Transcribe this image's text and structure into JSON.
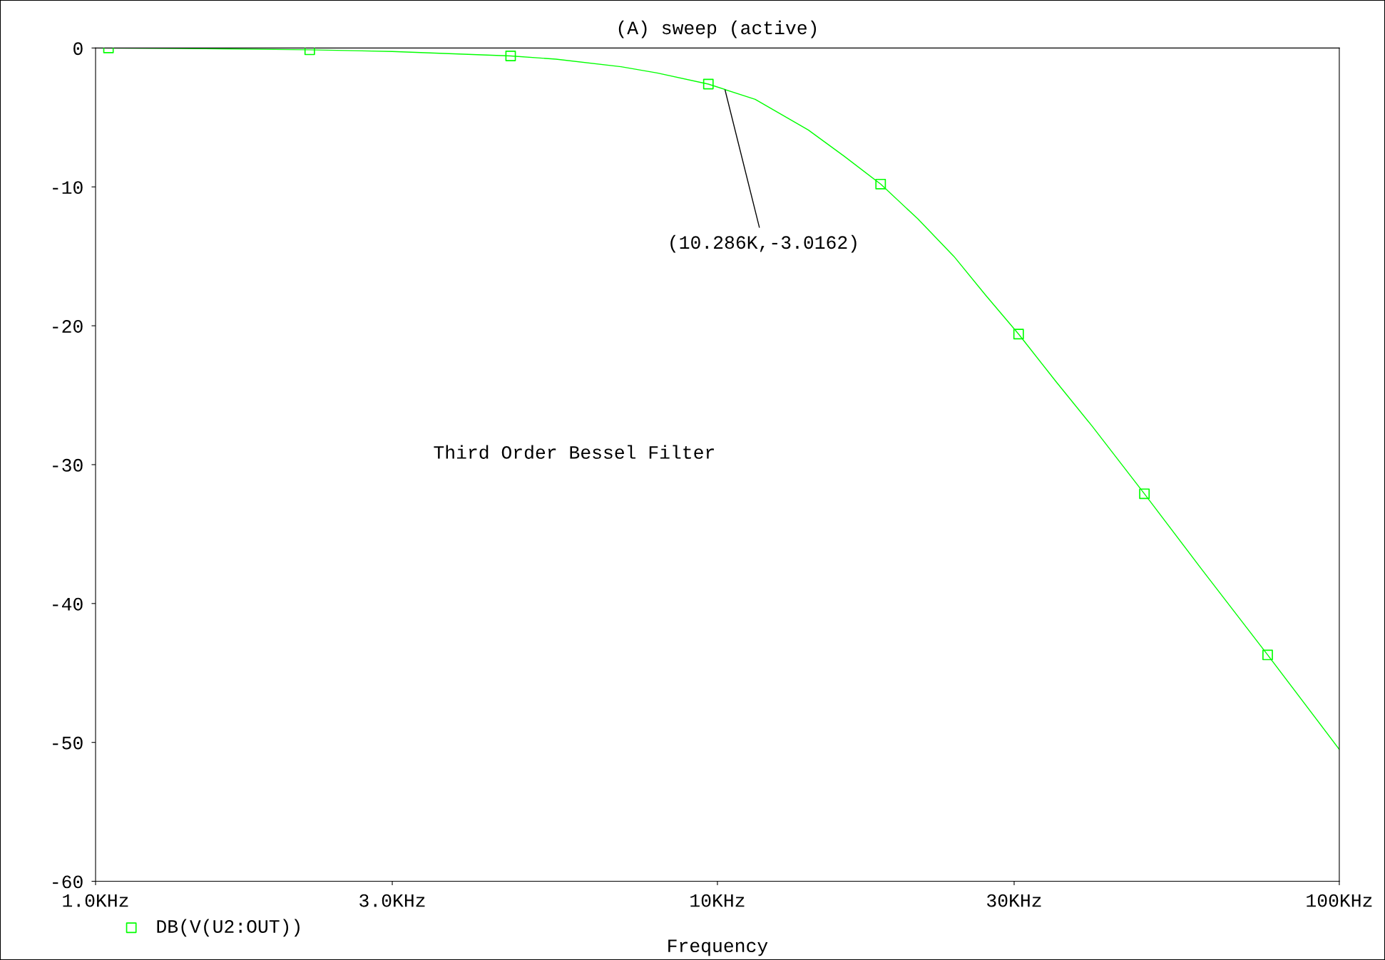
{
  "chart_data": {
    "type": "line",
    "title": "(A) sweep (active)",
    "xlabel": "Frequency",
    "log": "x",
    "xlim": [
      1,
      100
    ],
    "xticks": [
      {
        "value": 1,
        "label": "1.0KHz"
      },
      {
        "value": 3,
        "label": "3.0KHz"
      },
      {
        "value": 10,
        "label": "10KHz"
      },
      {
        "value": 30,
        "label": "30KHz"
      },
      {
        "value": 100,
        "label": "100KHz"
      }
    ],
    "ylim": [
      -60,
      0
    ],
    "yticks": [
      -60,
      -50,
      -40,
      -30,
      -20,
      -10,
      0
    ],
    "grid": false,
    "legend": "bottom left",
    "series": [
      {
        "type": "line",
        "color": "#00ff00",
        "marker": "none",
        "x": [
          1,
          1.5,
          2.21,
          3,
          4.65,
          5.5,
          7,
          8,
          9.67,
          11.5,
          14,
          16,
          18.3,
          21,
          24,
          27,
          30.5,
          35,
          40,
          48.6,
          60,
          76.7,
          100
        ],
        "values": [
          0,
          -0.05,
          -0.13,
          -0.25,
          -0.57,
          -0.8,
          -1.35,
          -1.8,
          -2.6,
          -3.7,
          -5.9,
          -7.8,
          -9.8,
          -12.3,
          -15.0,
          -17.8,
          -20.6,
          -24.0,
          -27.2,
          -32.1,
          -37.5,
          -43.7,
          -50.5
        ]
      },
      {
        "type": "scatter",
        "name": "DB(V(U2:OUT))",
        "color": "#00ff00",
        "marker": "square",
        "x": [
          1.049,
          2.21,
          4.65,
          9.67,
          18.3,
          30.5,
          48.6,
          76.7
        ],
        "values": [
          0,
          -0.13,
          -0.57,
          -2.6,
          -9.8,
          -20.6,
          -32.1,
          -43.7
        ]
      }
    ],
    "annotations": [
      {
        "text": "(10.286K,-3.0162)",
        "x": 10.286,
        "y": -3.0162
      },
      "Third Order Bessel Filter"
    ]
  }
}
